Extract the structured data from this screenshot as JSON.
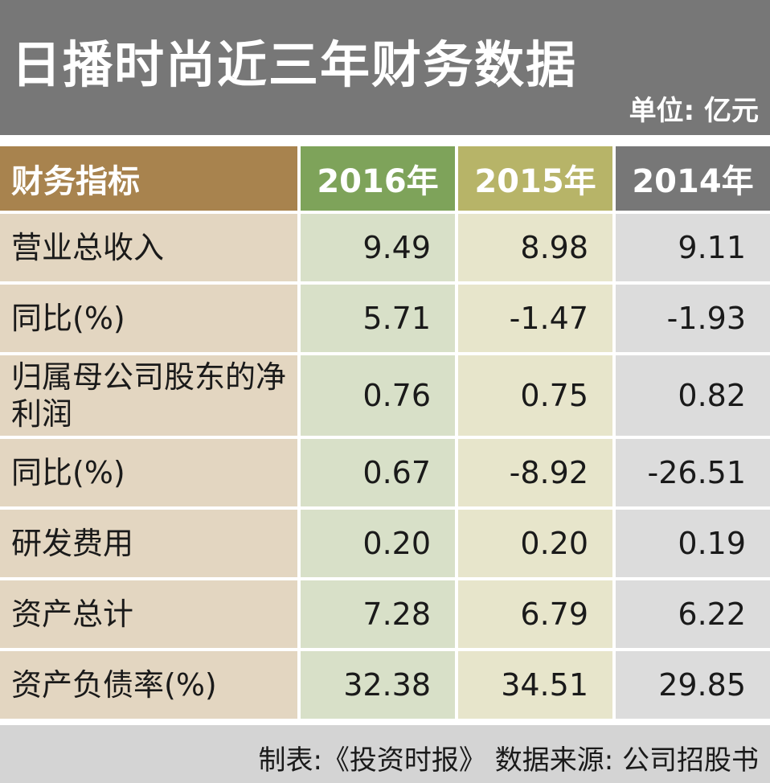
{
  "header": {
    "title": "日播时尚近三年财务数据",
    "unit": "单位: 亿元"
  },
  "table": {
    "columns": [
      "财务指标",
      "2016年",
      "2015年",
      "2014年"
    ],
    "rows": [
      {
        "label": "营业总收入",
        "values": [
          "9.49",
          "8.98",
          "9.11"
        ]
      },
      {
        "label": "同比(%)",
        "values": [
          "5.71",
          "-1.47",
          "-1.93"
        ]
      },
      {
        "label": "归属母公司股东的净利润",
        "values": [
          "0.76",
          "0.75",
          "0.82"
        ]
      },
      {
        "label": "同比(%)",
        "values": [
          "0.67",
          "-8.92",
          "-26.51"
        ]
      },
      {
        "label": "研发费用",
        "values": [
          "0.20",
          "0.20",
          "0.19"
        ]
      },
      {
        "label": "资产总计",
        "values": [
          "7.28",
          "6.79",
          "6.22"
        ]
      },
      {
        "label": "资产负债率(%)",
        "values": [
          "32.38",
          "34.51",
          "29.85"
        ]
      }
    ]
  },
  "footer": {
    "text": "制表:《投资时报》 数据来源: 公司招股书"
  },
  "colors": {
    "title_bg": "#777777",
    "label_header": "#a8834e",
    "col_2016_header": "#7ea35a",
    "col_2015_header": "#b7b468",
    "col_2014_header": "#777777",
    "label_cell": "#e3d6c1",
    "col_2016_cell": "#d8e0c8",
    "col_2015_cell": "#e7e5cb",
    "col_2014_cell": "#dcdcdc",
    "footer_bg": "#d4d4d4"
  }
}
